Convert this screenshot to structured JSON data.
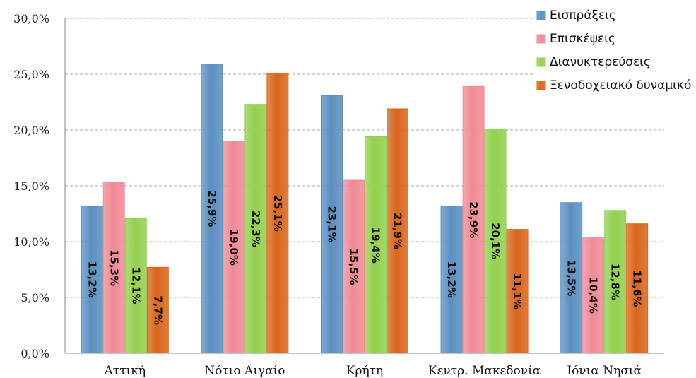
{
  "chart_data": {
    "type": "bar",
    "categories": [
      "Αττική",
      "Νότιο Αιγαίο",
      "Κρήτη",
      "Κεντρ. Μακεδονία",
      "Ιόνια Νησιά"
    ],
    "series": [
      {
        "name": "Εισπράξεις",
        "color": "#5b8fbf",
        "values": [
          13.2,
          25.9,
          23.1,
          13.2,
          13.5
        ]
      },
      {
        "name": "Επισκέψεις",
        "color": "#f08a95",
        "values": [
          15.3,
          19.0,
          15.5,
          23.9,
          10.4
        ]
      },
      {
        "name": "Διανυκτερεύσεις",
        "color": "#93d04f",
        "values": [
          12.1,
          22.3,
          19.4,
          20.1,
          12.8
        ]
      },
      {
        "name": "Ξενοδοχειακό δυναμικό",
        "color": "#d9661c",
        "values": [
          7.7,
          25.1,
          21.9,
          11.1,
          11.6
        ]
      }
    ],
    "data_labels": [
      [
        "13,2%",
        "25,9%",
        "23,1%",
        "13,2%",
        "13,5%"
      ],
      [
        "15,3%",
        "19,0%",
        "15,5%",
        "23,9%",
        "10,4%"
      ],
      [
        "12,1%",
        "22,3%",
        "19,4%",
        "20,1%",
        "12,8%"
      ],
      [
        "7,7%",
        "25,1%",
        "21,9%",
        "11,1%",
        "11,6%"
      ]
    ],
    "yticks": [
      0,
      5,
      10,
      15,
      20,
      25,
      30
    ],
    "ytick_labels": [
      "0,0%",
      "5,0%",
      "10,0%",
      "15,0%",
      "20,0%",
      "25,0%",
      "30,0%"
    ],
    "ylim": [
      0,
      30
    ],
    "grid": true,
    "legend_position": "top-right",
    "title": "",
    "xlabel": "",
    "ylabel": ""
  }
}
